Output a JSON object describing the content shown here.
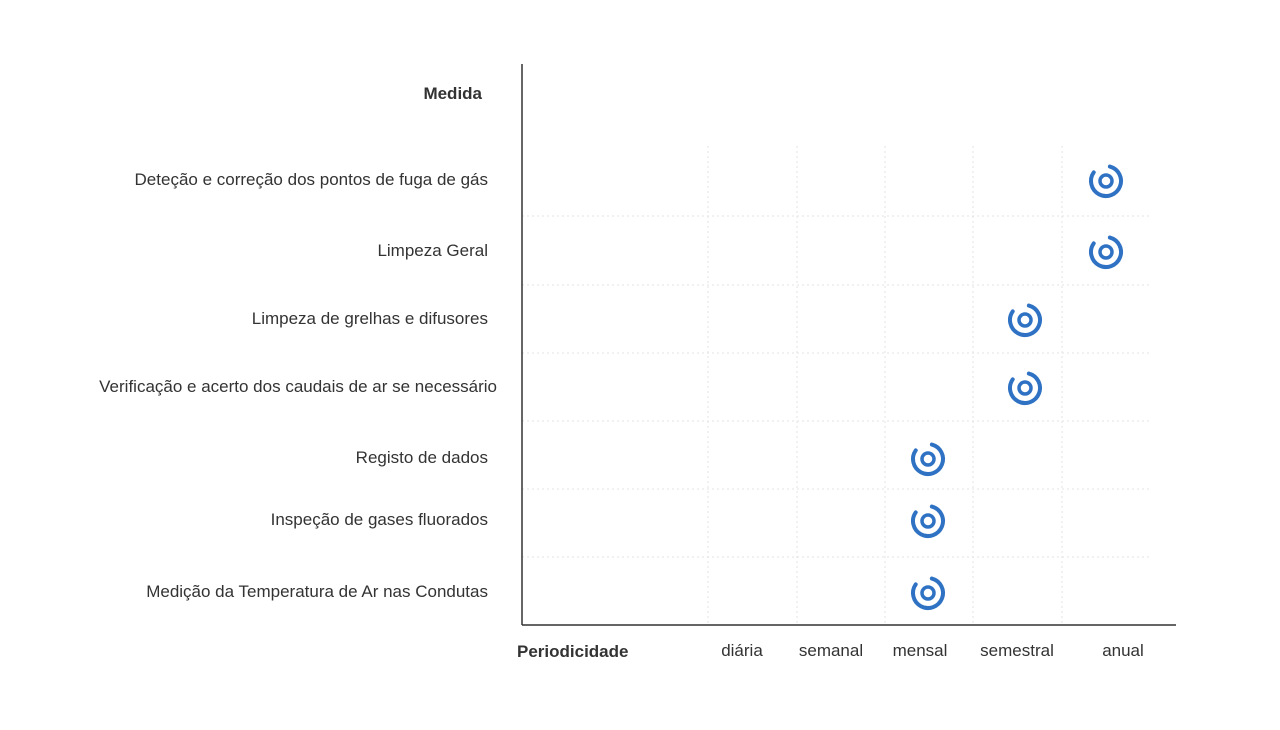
{
  "chart_data": {
    "type": "scatter",
    "ytitle": "Medida",
    "xtitle": "Periodicidade",
    "categories_x": [
      "diária",
      "semanal",
      "mensal",
      "semestral",
      "anual"
    ],
    "categories_y": [
      "Deteção e correção dos pontos de fuga de gás",
      "Limpeza Geral",
      "Limpeza de grelhas e difusores",
      "Verificação e acerto dos caudais de ar se necessário",
      "Registo de dados",
      "Inspeção de gases fluorados",
      "Medição da Temperatura de Ar nas Condutas"
    ],
    "points": [
      {
        "y": "Deteção e correção dos pontos de fuga de gás",
        "x": "anual"
      },
      {
        "y": "Limpeza Geral",
        "x": "anual"
      },
      {
        "y": "Limpeza de grelhas e difusores",
        "x": "semestral"
      },
      {
        "y": "Verificação e acerto dos caudais de ar se necessário",
        "x": "semestral"
      },
      {
        "y": "Registo de dados",
        "x": "mensal"
      },
      {
        "y": "Inspeção de gases fluorados",
        "x": "mensal"
      },
      {
        "y": "Medição da Temperatura de Ar nas Condutas",
        "x": "mensal"
      }
    ],
    "marker_icon": "target-ring-icon",
    "marker_color": "#2f72c4",
    "grid": true
  }
}
